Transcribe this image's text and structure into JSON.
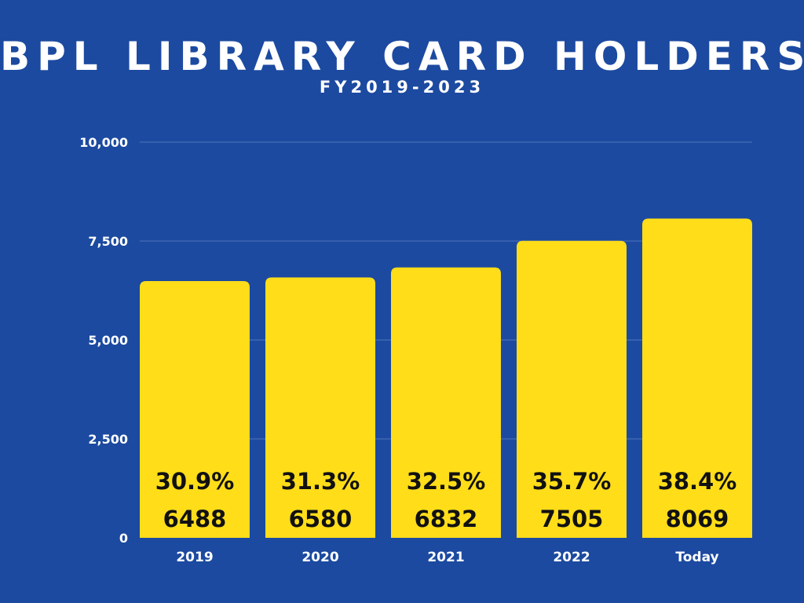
{
  "header": {
    "title": "BPL LIBRARY CARD HOLDERS",
    "subtitle": "FY2019-2023"
  },
  "colors": {
    "background": "#1c4aa0",
    "bar": "#ffdd19",
    "bar_text": "#111111",
    "axis_text": "#ffffff",
    "grid": "#4f75bd"
  },
  "chart_data": {
    "type": "bar",
    "title": "BPL LIBRARY CARD HOLDERS",
    "subtitle": "FY2019-2023",
    "xlabel": "",
    "ylabel": "",
    "categories": [
      "2019",
      "2020",
      "2021",
      "2022",
      "Today"
    ],
    "values": [
      6488,
      6580,
      6832,
      7505,
      8069
    ],
    "percent_labels": [
      "30.9%",
      "31.3%",
      "32.5%",
      "35.7%",
      "38.4%"
    ],
    "value_labels": [
      "6488",
      "6580",
      "6832",
      "7505",
      "8069"
    ],
    "ylim": [
      0,
      10000
    ],
    "yticks": [
      0,
      2500,
      5000,
      7500,
      10000
    ],
    "ytick_labels": [
      "0",
      "2,500",
      "5,000",
      "7,500",
      "10,000"
    ],
    "grid": true,
    "legend": "none"
  }
}
